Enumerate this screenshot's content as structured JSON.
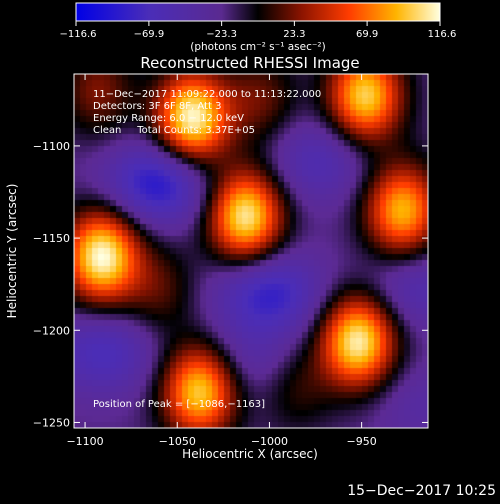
{
  "chart_data": {
    "type": "heatmap",
    "title": "Reconstructed RHESSI Image",
    "xlabel": "Heliocentric X (arcsec)",
    "ylabel": "Heliocentric Y (arcsec)",
    "xlim": [
      -1106,
      -914
    ],
    "ylim": [
      -1253,
      -1061
    ],
    "x_ticks": [
      -1100,
      -1050,
      -1000,
      -950
    ],
    "x_tick_labels": [
      "−1100",
      "−1050",
      "−1000",
      "−950"
    ],
    "y_ticks": [
      -1100,
      -1150,
      -1200,
      -1250
    ],
    "y_tick_labels": [
      "−1100",
      "−1150",
      "−1200",
      "−1250"
    ],
    "colorbar": {
      "range": [
        -116.6,
        116.6
      ],
      "tick_values": [
        -116.6,
        -69.9,
        -23.3,
        23.3,
        69.9,
        116.6
      ],
      "tick_labels": [
        "−116.6",
        "−69.9",
        "−23.3",
        "23.3",
        "69.9",
        "116.6"
      ],
      "units_label": "(photons cm⁻² s⁻¹ asec⁻²)"
    },
    "info_lines": [
      "11−Dec−2017 11:09:22.000 to 11:13:22.000",
      "Detectors: 3F 6F 8F, Att 3",
      "Energy Range: 6.0 − 12.0 keV",
      "Clean     Total Counts: 3.37E+05"
    ],
    "peak_label": "Position of Peak = [−1086,−1163]",
    "sources": [
      {
        "x": -1042,
        "y": -1085,
        "amp": 116
      },
      {
        "x": -948,
        "y": -1073,
        "amp": 100
      },
      {
        "x": -1091,
        "y": -1160,
        "amp": 116
      },
      {
        "x": -1013,
        "y": -1138,
        "amp": 110
      },
      {
        "x": -928,
        "y": -1135,
        "amp": 90
      },
      {
        "x": -952,
        "y": -1206,
        "amp": 112
      },
      {
        "x": -1038,
        "y": -1233,
        "amp": 100
      },
      {
        "x": -1005,
        "y": -1075,
        "amp": 20
      },
      {
        "x": -1093,
        "y": -1070,
        "amp": 25
      },
      {
        "x": -1060,
        "y": -1178,
        "amp": 15
      },
      {
        "x": -985,
        "y": -1230,
        "amp": 10
      },
      {
        "x": -1060,
        "y": -1120,
        "amp": -95
      },
      {
        "x": -973,
        "y": -1108,
        "amp": -60
      },
      {
        "x": -1000,
        "y": -1180,
        "amp": -85
      },
      {
        "x": -1090,
        "y": -1212,
        "amp": -70
      },
      {
        "x": -920,
        "y": -1177,
        "amp": -55
      },
      {
        "x": -918,
        "y": -1240,
        "amp": -40
      },
      {
        "x": -1010,
        "y": -1215,
        "amp": -45
      }
    ]
  },
  "footer_date": "15−Dec−2017 10:25"
}
